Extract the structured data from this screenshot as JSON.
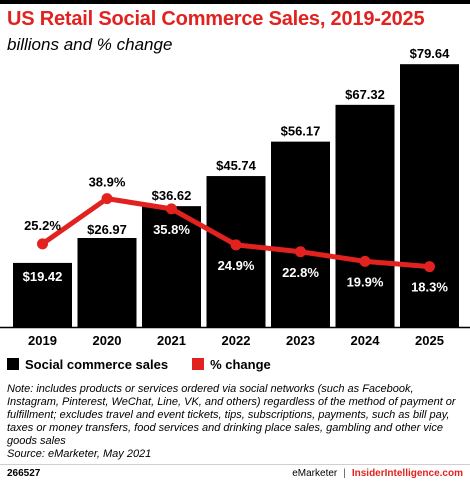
{
  "header": {
    "title": "US Retail Social Commerce Sales, 2019-2025",
    "subtitle": "billions and % change"
  },
  "chart_data": {
    "type": "bar",
    "title": "US Retail Social Commerce Sales, 2019-2025",
    "subtitle": "billions and % change",
    "categories": [
      "2019",
      "2020",
      "2021",
      "2022",
      "2023",
      "2024",
      "2025"
    ],
    "series": [
      {
        "name": "Social commerce sales",
        "type": "bar",
        "values": [
          19.42,
          26.97,
          36.62,
          45.74,
          56.17,
          67.32,
          79.64
        ],
        "labels": [
          "$19.42",
          "$26.97",
          "$36.62",
          "$45.74",
          "$56.17",
          "$67.32",
          "$79.64"
        ],
        "color": "#000000"
      },
      {
        "name": "% change",
        "type": "line",
        "values": [
          25.2,
          38.9,
          35.8,
          24.9,
          22.8,
          19.9,
          18.3
        ],
        "labels": [
          "25.2%",
          "38.9%",
          "35.8%",
          "24.9%",
          "22.8%",
          "19.9%",
          "18.3%"
        ],
        "color": "#e1221f"
      }
    ],
    "ylim": [
      0,
      80
    ],
    "ylim_pct": [
      0,
      80
    ],
    "grid": false,
    "legend": "bottom-left",
    "xlabel": "",
    "ylabel": ""
  },
  "legend": {
    "bars_label": "Social commerce sales",
    "line_label": "% change",
    "bars_color": "#000000",
    "line_color": "#e1221f"
  },
  "note": "Note: includes products or services ordered via social networks (such as Facebook, Instagram, Pinterest, WeChat, Line, VK, and others) regardless of the method of payment or fulfillment; excludes travel and event tickets, tips, subscriptions, payments, such as bill pay, taxes or money transfers, food services and drinking place sales, gambling and other vice goods sales",
  "source": "Source: eMarketer, May 2021",
  "footer": {
    "chart_id": "266527",
    "brand": "eMarketer",
    "separator": "|",
    "site": "InsiderIntelligence.com"
  }
}
